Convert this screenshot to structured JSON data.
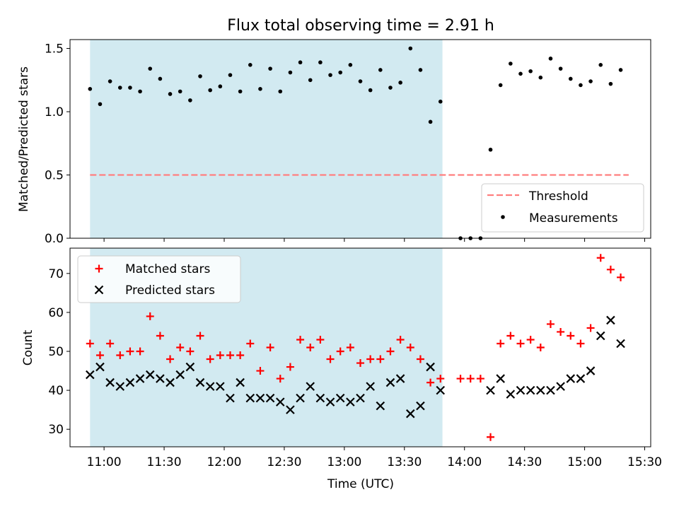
{
  "chart_data": [
    {
      "type": "scatter",
      "title": "Flux total observing time = 2.91 h",
      "xlabel": "",
      "ylabel": "Matched/Predicted stars",
      "xlim": [
        "10:43",
        "15:33"
      ],
      "ylim": [
        0,
        1.57
      ],
      "yticks": [
        "0.0",
        "0.5",
        "1.0",
        "1.5"
      ],
      "grid": false,
      "legend_position": "lower right",
      "highlight_span": {
        "start": "10:53",
        "end": "13:49",
        "color": "#add8e6"
      },
      "threshold": {
        "name": "Threshold",
        "value": 0.5,
        "x_start": "10:53",
        "x_end": "15:22",
        "color": "#ff7f7f"
      },
      "series": [
        {
          "name": "Measurements",
          "color": "#000000",
          "marker": "dot",
          "x": [
            "10:53",
            "10:58",
            "11:03",
            "11:08",
            "11:13",
            "11:18",
            "11:23",
            "11:28",
            "11:33",
            "11:38",
            "11:43",
            "11:48",
            "11:53",
            "11:58",
            "12:03",
            "12:08",
            "12:13",
            "12:18",
            "12:23",
            "12:28",
            "12:33",
            "12:38",
            "12:43",
            "12:48",
            "12:53",
            "12:58",
            "13:03",
            "13:08",
            "13:13",
            "13:18",
            "13:23",
            "13:28",
            "13:33",
            "13:38",
            "13:43",
            "13:48",
            "13:58",
            "14:03",
            "14:08",
            "14:13",
            "14:18",
            "14:23",
            "14:28",
            "14:33",
            "14:38",
            "14:43",
            "14:48",
            "14:53",
            "14:58",
            "15:03",
            "15:08",
            "15:13",
            "15:18"
          ],
          "y": [
            1.18,
            1.06,
            1.24,
            1.19,
            1.19,
            1.16,
            1.34,
            1.26,
            1.14,
            1.16,
            1.09,
            1.28,
            1.17,
            1.2,
            1.29,
            1.16,
            1.37,
            1.18,
            1.34,
            1.16,
            1.31,
            1.39,
            1.25,
            1.39,
            1.29,
            1.31,
            1.37,
            1.24,
            1.17,
            1.33,
            1.19,
            1.23,
            1.5,
            1.33,
            0.92,
            1.08,
            0.0,
            0.0,
            0.0,
            0.7,
            1.21,
            1.38,
            1.3,
            1.32,
            1.27,
            1.42,
            1.34,
            1.26,
            1.21,
            1.24,
            1.37,
            1.22,
            1.33
          ]
        }
      ]
    },
    {
      "type": "scatter",
      "title": "",
      "xlabel": "Time (UTC)",
      "ylabel": "Count",
      "xlim": [
        "10:43",
        "15:33"
      ],
      "ylim": [
        25.5,
        76.5
      ],
      "xticks": [
        "11:00",
        "11:30",
        "12:00",
        "12:30",
        "13:00",
        "13:30",
        "14:00",
        "14:30",
        "15:00",
        "15:30"
      ],
      "yticks": [
        "30",
        "40",
        "50",
        "60",
        "70"
      ],
      "grid": false,
      "legend_position": "upper left",
      "highlight_span": {
        "start": "10:53",
        "end": "13:49",
        "color": "#add8e6"
      },
      "series": [
        {
          "name": "Matched stars",
          "color": "#ff0000",
          "marker": "plus",
          "x": [
            "10:53",
            "10:58",
            "11:03",
            "11:08",
            "11:13",
            "11:18",
            "11:23",
            "11:28",
            "11:33",
            "11:38",
            "11:43",
            "11:48",
            "11:53",
            "11:58",
            "12:03",
            "12:08",
            "12:13",
            "12:18",
            "12:23",
            "12:28",
            "12:33",
            "12:38",
            "12:43",
            "12:48",
            "12:53",
            "12:58",
            "13:03",
            "13:08",
            "13:13",
            "13:18",
            "13:23",
            "13:28",
            "13:33",
            "13:38",
            "13:43",
            "13:48",
            "13:58",
            "14:03",
            "14:08",
            "14:13",
            "14:18",
            "14:23",
            "14:28",
            "14:33",
            "14:38",
            "14:43",
            "14:48",
            "14:53",
            "14:58",
            "15:03",
            "15:08",
            "15:13",
            "15:18"
          ],
          "y": [
            52,
            49,
            52,
            49,
            50,
            50,
            59,
            54,
            48,
            51,
            50,
            54,
            48,
            49,
            49,
            49,
            52,
            45,
            51,
            43,
            46,
            53,
            51,
            53,
            48,
            50,
            51,
            47,
            48,
            48,
            50,
            53,
            51,
            48,
            42,
            43,
            43,
            43,
            43,
            28,
            52,
            54,
            52,
            53,
            51,
            57,
            55,
            54,
            52,
            56,
            74,
            71,
            69
          ]
        },
        {
          "name": "Predicted stars",
          "color": "#000000",
          "marker": "x",
          "x": [
            "10:53",
            "10:58",
            "11:03",
            "11:08",
            "11:13",
            "11:18",
            "11:23",
            "11:28",
            "11:33",
            "11:38",
            "11:43",
            "11:48",
            "11:53",
            "11:58",
            "12:03",
            "12:08",
            "12:13",
            "12:18",
            "12:23",
            "12:28",
            "12:33",
            "12:38",
            "12:43",
            "12:48",
            "12:53",
            "12:58",
            "13:03",
            "13:08",
            "13:13",
            "13:18",
            "13:23",
            "13:28",
            "13:33",
            "13:38",
            "13:43",
            "13:48",
            "14:13",
            "14:18",
            "14:23",
            "14:28",
            "14:33",
            "14:38",
            "14:43",
            "14:48",
            "14:53",
            "14:58",
            "15:03",
            "15:08",
            "15:13",
            "15:18"
          ],
          "y": [
            44,
            46,
            42,
            41,
            42,
            43,
            44,
            43,
            42,
            44,
            46,
            42,
            41,
            41,
            38,
            42,
            38,
            38,
            38,
            37,
            35,
            38,
            41,
            38,
            37,
            38,
            37,
            38,
            41,
            36,
            42,
            43,
            34,
            36,
            46,
            40,
            40,
            43,
            39,
            40,
            40,
            40,
            40,
            41,
            43,
            43,
            45,
            54,
            58,
            52
          ]
        }
      ]
    }
  ]
}
